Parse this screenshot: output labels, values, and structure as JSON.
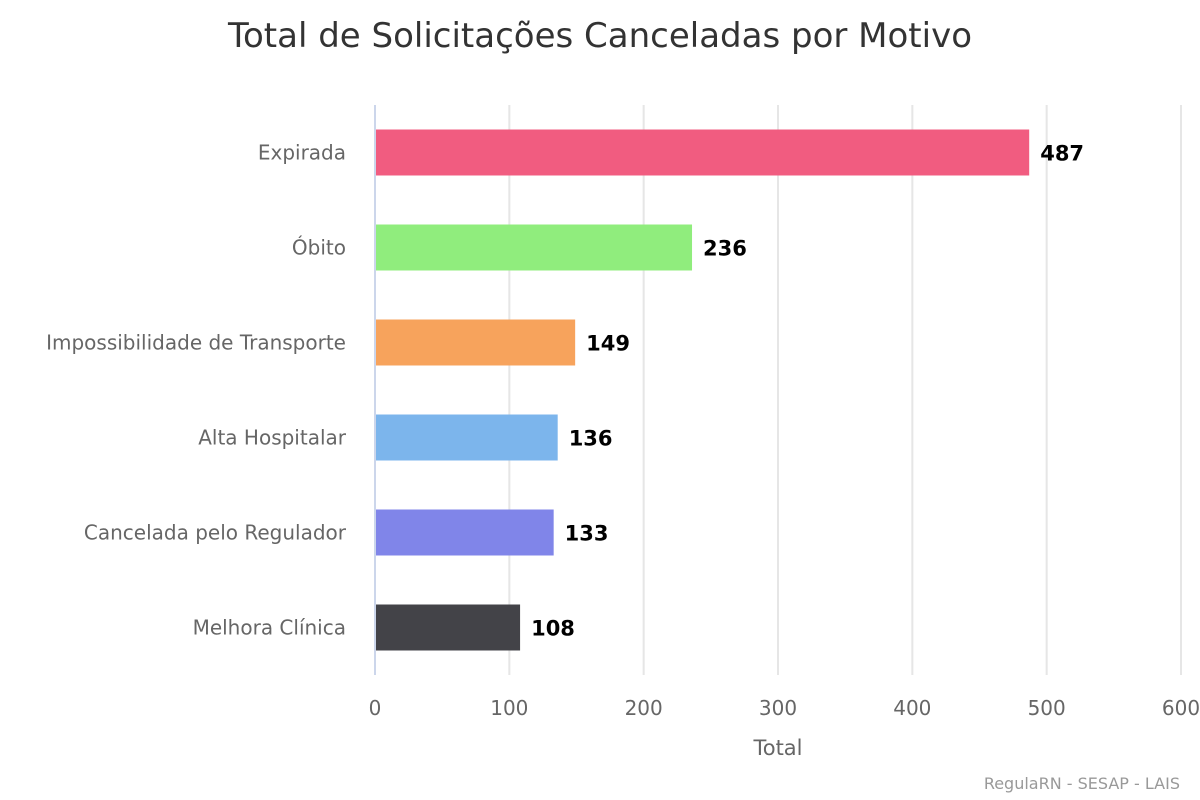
{
  "chart_data": {
    "type": "bar",
    "orientation": "horizontal",
    "title": "Total de Solicitações Canceladas por Motivo",
    "categories": [
      "Expirada",
      "Óbito",
      "Impossibilidade de Transporte",
      "Alta Hospitalar",
      "Cancelada pelo Regulador",
      "Melhora Clínica"
    ],
    "values": [
      487,
      236,
      149,
      136,
      133,
      108
    ],
    "value_labels": [
      "487",
      "236",
      "149",
      "136",
      "133",
      "108"
    ],
    "colors": [
      "#f15c80",
      "#90ed7d",
      "#f7a35c",
      "#7cb5ec",
      "#8085e9",
      "#434348"
    ],
    "xlabel": "",
    "ylabel": "Total",
    "ylim": [
      0,
      600
    ],
    "ticks": [
      "0",
      "100",
      "200",
      "300",
      "400",
      "500",
      "600"
    ],
    "tick_values": [
      0,
      100,
      200,
      300,
      400,
      500,
      600
    ],
    "grid": true,
    "legend": "none"
  },
  "credits": "RegulaRN - SESAP - LAIS"
}
